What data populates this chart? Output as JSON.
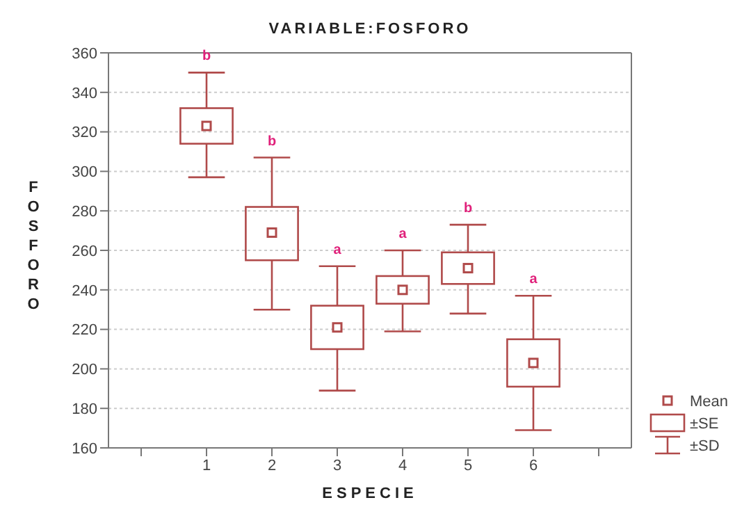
{
  "chart_data": {
    "type": "box",
    "title": "VARIABLE:FOSFORO",
    "xlabel": "ESPECIE",
    "ylabel": "FOSFORO",
    "categories": [
      "1",
      "2",
      "3",
      "4",
      "5",
      "6"
    ],
    "color": "#b04a4a",
    "boxes": [
      {
        "low": 297,
        "q1": 314,
        "mean": 323,
        "q3": 332,
        "high": 350
      },
      {
        "low": 230,
        "q1": 255,
        "mean": 269,
        "q3": 282,
        "high": 307
      },
      {
        "low": 189,
        "q1": 210,
        "mean": 221,
        "q3": 232,
        "high": 252
      },
      {
        "low": 219,
        "q1": 233,
        "mean": 240,
        "q3": 247,
        "high": 260
      },
      {
        "low": 228,
        "q1": 243,
        "mean": 251,
        "q3": 259,
        "high": 273
      },
      {
        "low": 169,
        "q1": 191,
        "mean": 203,
        "q3": 215,
        "high": 237
      }
    ],
    "ylim": [
      160,
      360
    ],
    "yticks": [
      160,
      180,
      200,
      220,
      240,
      260,
      280,
      300,
      320,
      340,
      360
    ],
    "grid": "y",
    "marker": "square",
    "annotations": [
      "b",
      "b",
      "a",
      "a",
      "b",
      "a",
      "Mean",
      "±SE",
      "±SD"
    ]
  }
}
